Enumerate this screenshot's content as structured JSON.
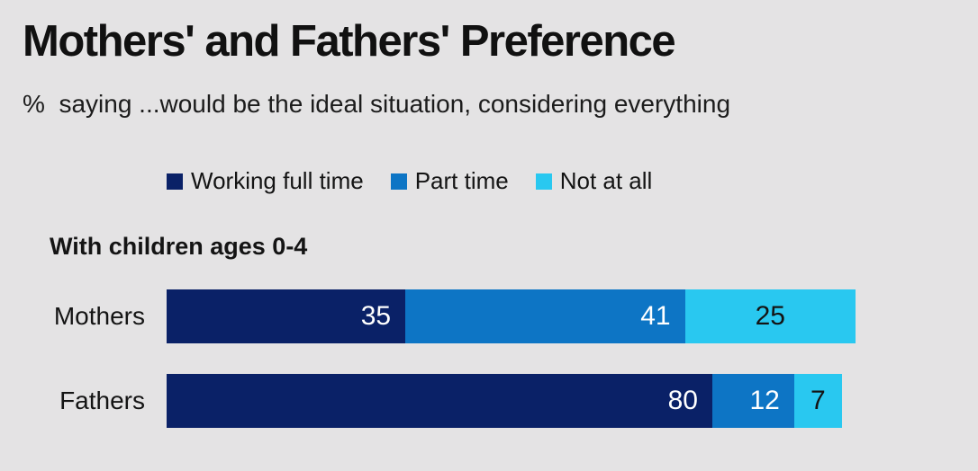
{
  "title": "Mothers' and Fathers' Preference",
  "subtitle": "%  saying ...would be the ideal situation, considering everything",
  "colors": {
    "background": "#e4e3e4",
    "text": "#141414",
    "working_full_time": "#0a2167",
    "part_time": "#0d75c5",
    "not_at_all": "#29c8f0",
    "value_on_dark": "#ffffff",
    "value_on_light": "#141414"
  },
  "chart_data": {
    "type": "bar",
    "orientation": "horizontal",
    "stacked": true,
    "title": "Mothers' and Fathers' Preference",
    "subtitle": "% saying ...would be the ideal situation, considering everything",
    "group_label": "With children ages 0-4",
    "categories": [
      "Mothers",
      "Fathers"
    ],
    "series": [
      {
        "name": "Working full time",
        "color": "#0a2167",
        "value_color": "#ffffff",
        "values": [
          35,
          80
        ]
      },
      {
        "name": "Part time",
        "color": "#0d75c5",
        "value_color": "#ffffff",
        "values": [
          41,
          12
        ]
      },
      {
        "name": "Not at all",
        "color": "#29c8f0",
        "value_color": "#141414",
        "values": [
          25,
          7
        ]
      }
    ],
    "xlim": [
      0,
      101
    ],
    "axes_shown": false,
    "gridlines": false,
    "legend_position": "top",
    "value_labels_shown": true
  }
}
